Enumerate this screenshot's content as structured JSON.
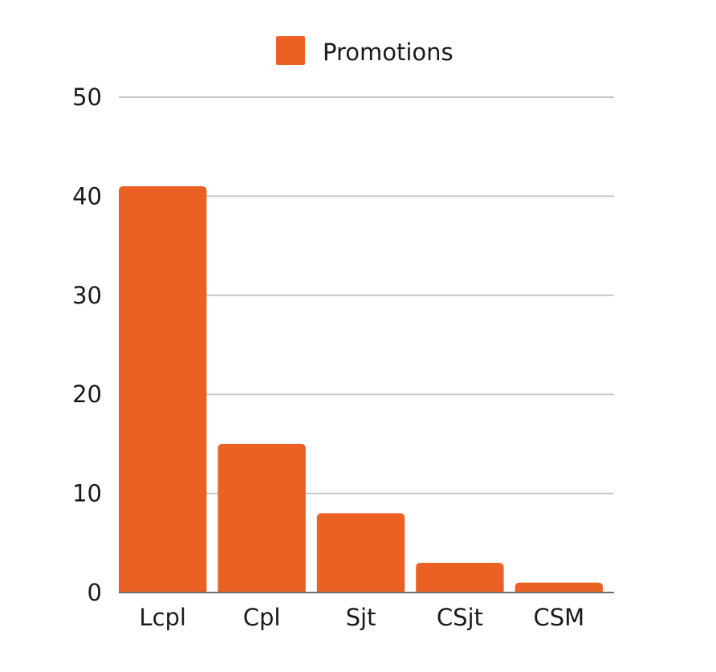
{
  "chart_data": {
    "type": "bar",
    "categories": [
      "Lcpl",
      "Cpl",
      "Sjt",
      "CSjt",
      "CSM"
    ],
    "series": [
      {
        "name": "Promotions",
        "values": [
          41,
          15,
          8,
          3,
          1
        ],
        "color": "#eb6124"
      }
    ],
    "yticks": [
      "0",
      "10",
      "20",
      "30",
      "40",
      "50"
    ],
    "ylim": [
      0,
      50
    ],
    "grid": true,
    "legend_position": "top-center"
  }
}
